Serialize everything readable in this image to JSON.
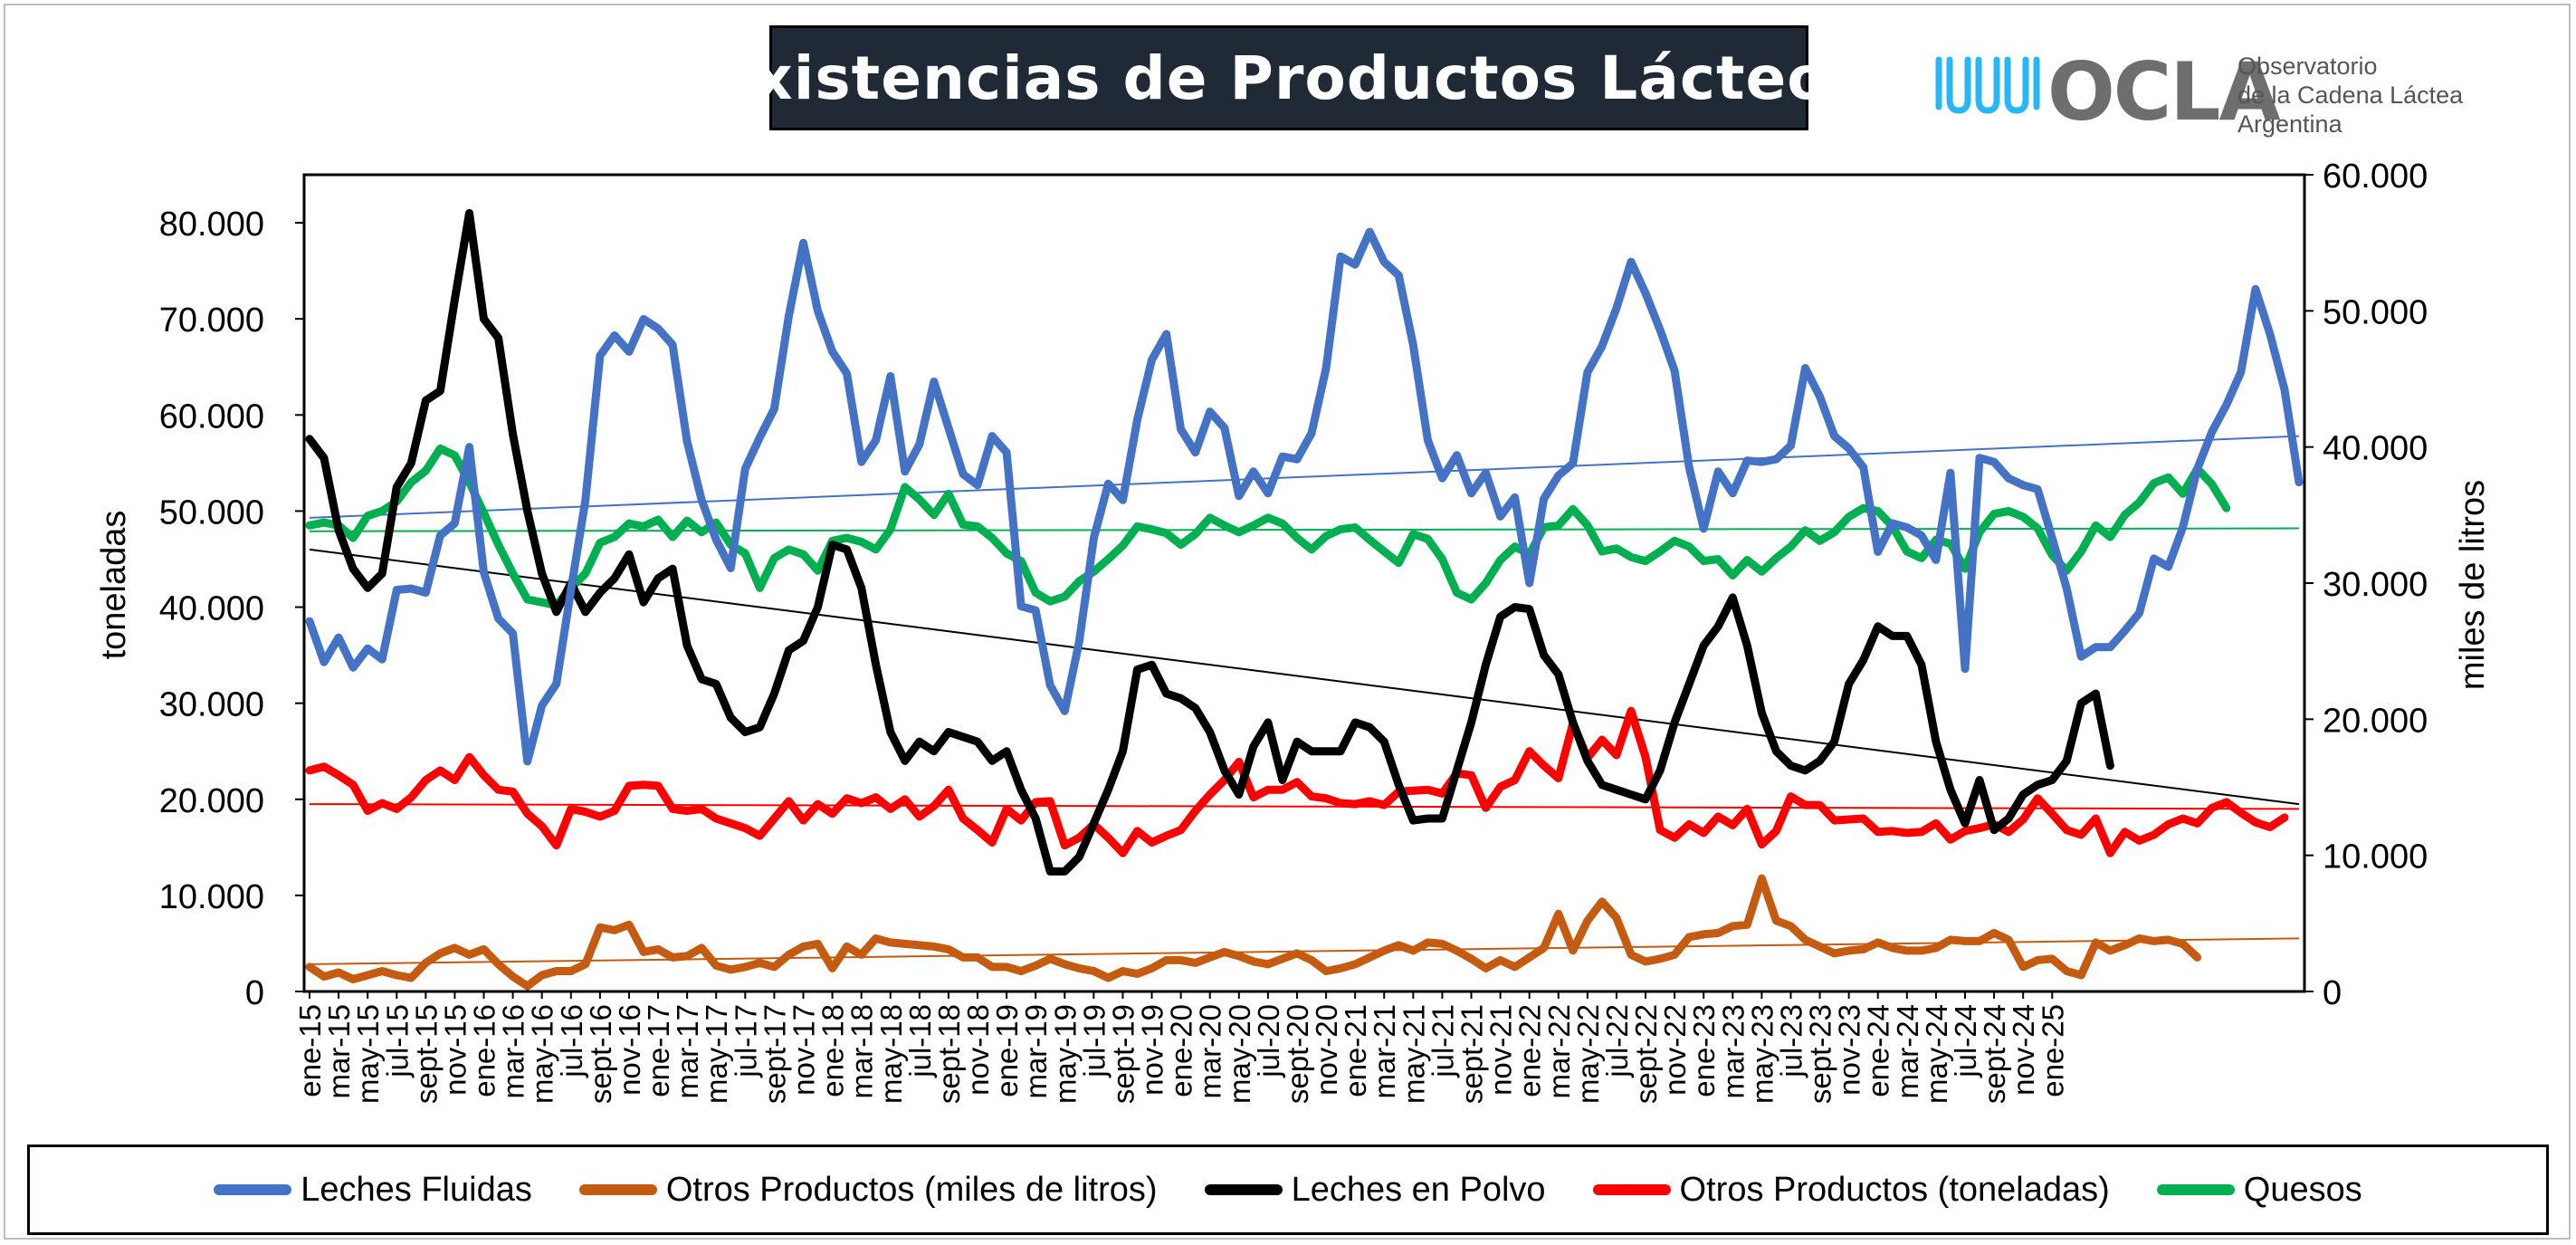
{
  "title": "Existencias de Productos Lácteos",
  "logo": {
    "wordmark": "OCLA",
    "line1": "Observatorio",
    "line2": "de la Cadena Láctea",
    "line3": "Argentina",
    "color": "#29b6f6"
  },
  "chart_data": {
    "type": "line",
    "title": "Existencias de Productos Lácteos",
    "ylabel": "toneladas",
    "y2label": "miles de litros",
    "ylim": [
      0,
      85000
    ],
    "y2lim": [
      0,
      60000
    ],
    "yticks": [
      "0",
      "10.000",
      "20.000",
      "30.000",
      "40.000",
      "50.000",
      "60.000",
      "70.000",
      "80.000"
    ],
    "y2ticks": [
      "0",
      "10.000",
      "20.000",
      "30.000",
      "40.000",
      "50.000",
      "60.000"
    ],
    "grid": false,
    "legend_position": "bottom",
    "x_labels": [
      "ene-15",
      "mar-15",
      "may-15",
      "jul-15",
      "sept-15",
      "nov-15",
      "ene-16",
      "mar-16",
      "may-16",
      "jul-16",
      "sept-16",
      "nov-16",
      "ene-17",
      "mar-17",
      "may-17",
      "jul-17",
      "sept-17",
      "nov-17",
      "ene-18",
      "mar-18",
      "may-18",
      "jul-18",
      "sept-18",
      "nov-18",
      "ene-19",
      "mar-19",
      "may-19",
      "jul-19",
      "sept-19",
      "nov-19",
      "ene-20",
      "mar-20",
      "may-20",
      "jul-20",
      "sept-20",
      "nov-20",
      "ene-21",
      "mar-21",
      "may-21",
      "jul-21",
      "sept-21",
      "nov-21",
      "ene-22",
      "mar-22",
      "may-22",
      "jul-22",
      "sept-22",
      "nov-22",
      "ene-23",
      "mar-23",
      "may-23",
      "jul-23",
      "sept-23",
      "nov-23",
      "ene-24",
      "mar-24",
      "may-24",
      "jul-24",
      "sept-24",
      "nov-24",
      "ene-25"
    ],
    "series": [
      {
        "name": "Leches Fluidas",
        "axis": "right",
        "color": "#4472c4",
        "trend": [
          34800,
          40800
        ],
        "values": [
          27200,
          24200,
          26000,
          23800,
          25200,
          24400,
          29500,
          29600,
          29300,
          33500,
          34400,
          40000,
          30800,
          27400,
          26300,
          16900,
          21000,
          22600,
          29500,
          36100,
          46700,
          48200,
          47000,
          49400,
          48700,
          47500,
          40400,
          36100,
          33200,
          31100,
          38400,
          40700,
          42800,
          49600,
          55000,
          50000,
          47000,
          45400,
          38900,
          40500,
          45200,
          38200,
          40200,
          44800,
          41400,
          38000,
          37200,
          40800,
          39600,
          28300,
          28000,
          22500,
          20600,
          25700,
          33300,
          37300,
          36100,
          42000,
          46400,
          48300,
          41300,
          39600,
          42600,
          41400,
          36400,
          38200,
          36600,
          39300,
          39100,
          41000,
          45800,
          54000,
          53400,
          55800,
          53600,
          52600,
          47500,
          40500,
          37700,
          39400,
          36600,
          38100,
          34900,
          36300,
          30000,
          36200,
          37900,
          38800,
          45500,
          47400,
          50200,
          53600,
          51300,
          48600,
          45600,
          38500,
          34000,
          38200,
          36600,
          39000,
          38900,
          39100,
          40100,
          45800,
          43700,
          40800,
          39900,
          38500,
          32300,
          34400,
          34100,
          33500,
          31700,
          38100,
          23700,
          39200,
          38900,
          37700,
          37200,
          36900,
          33300,
          29600,
          24600,
          25300,
          25300,
          26500,
          27800,
          31800,
          31200,
          34100,
          38400,
          41100,
          43100,
          45500,
          51600,
          48300,
          44200,
          37400
        ]
      },
      {
        "name": "Otros Productos (miles de litros)",
        "axis": "right",
        "color": "#c55a11",
        "trend": [
          2000,
          3900
        ],
        "values": [
          1800,
          1100,
          1400,
          900,
          1200,
          1500,
          1200,
          1000,
          2100,
          2800,
          3200,
          2700,
          3100,
          2000,
          1100,
          400,
          1200,
          1500,
          1500,
          2000,
          4700,
          4500,
          4900,
          2900,
          3100,
          2500,
          2600,
          3200,
          1900,
          1600,
          1800,
          2100,
          1800,
          2700,
          3300,
          3500,
          1700,
          3300,
          2700,
          3900,
          3600,
          3500,
          3400,
          3300,
          3100,
          2500,
          2500,
          1800,
          1800,
          1500,
          1900,
          2400,
          2000,
          1700,
          1500,
          1000,
          1500,
          1300,
          1700,
          2300,
          2300,
          2100,
          2500,
          2900,
          2600,
          2200,
          2000,
          2400,
          2800,
          2300,
          1500,
          1700,
          2000,
          2500,
          3000,
          3400,
          3000,
          3600,
          3500,
          3000,
          2400,
          1700,
          2300,
          1800,
          2500,
          3200,
          5700,
          3000,
          5200,
          6600,
          5400,
          2700,
          2200,
          2400,
          2700,
          4000,
          4200,
          4300,
          4800,
          4900,
          8300,
          5200,
          4800,
          3800,
          3300,
          2800,
          3000,
          3100,
          3600,
          3200,
          3000,
          3000,
          3200,
          3800,
          3700,
          3700,
          4300,
          3800,
          1800,
          2300,
          2400,
          1500,
          1200,
          3600,
          3000,
          3400,
          3900,
          3700,
          3800,
          3500,
          2500
        ]
      },
      {
        "name": "Leches en Polvo",
        "axis": "left",
        "color": "#000000",
        "trend": [
          46000,
          19500
        ],
        "values": [
          57500,
          55500,
          48000,
          44000,
          42000,
          43500,
          52500,
          55000,
          61500,
          62500,
          72000,
          81000,
          70000,
          68000,
          58000,
          50000,
          43500,
          39500,
          42500,
          39500,
          41500,
          43000,
          45500,
          40500,
          43000,
          44000,
          36000,
          32500,
          32000,
          28500,
          27000,
          27500,
          31000,
          35500,
          36500,
          40000,
          46500,
          46000,
          42000,
          34000,
          27000,
          24000,
          26000,
          25000,
          27000,
          26500,
          26000,
          24000,
          25000,
          21000,
          18000,
          12500,
          12500,
          14000,
          17500,
          21000,
          25000,
          33500,
          34000,
          31000,
          30500,
          29500,
          27000,
          23000,
          20500,
          25500,
          28000,
          22000,
          26000,
          25000,
          25000,
          25000,
          28000,
          27500,
          26000,
          21500,
          17800,
          18000,
          18000,
          23000,
          28000,
          34000,
          39000,
          40000,
          39800,
          35000,
          33000,
          28000,
          24000,
          21500,
          21000,
          20500,
          20000,
          23000,
          28000,
          32000,
          36000,
          38000,
          41000,
          36000,
          29000,
          25000,
          23500,
          23000,
          24000,
          26000,
          32000,
          34500,
          38000,
          37000,
          37000,
          34000,
          26000,
          21000,
          17500,
          22000,
          16800,
          18000,
          20500,
          21500,
          22000,
          24000,
          30000,
          31000,
          23500
        ]
      },
      {
        "name": "Otros Productos (toneladas)",
        "axis": "left",
        "color": "#ff0000",
        "trend": [
          19500,
          19000
        ],
        "values": [
          23000,
          23400,
          22500,
          21500,
          18800,
          19600,
          19000,
          20200,
          22000,
          23000,
          22000,
          24400,
          22500,
          21000,
          20800,
          18500,
          17200,
          15200,
          19000,
          18700,
          18200,
          18800,
          21400,
          21500,
          21400,
          19000,
          18800,
          19000,
          18000,
          17500,
          17000,
          16200,
          18000,
          19800,
          17800,
          19500,
          18500,
          20100,
          19600,
          20200,
          19000,
          20000,
          18200,
          19300,
          21000,
          18000,
          16800,
          15500,
          19000,
          17800,
          19700,
          19800,
          15200,
          16000,
          17400,
          16000,
          14400,
          16700,
          15500,
          16200,
          16800,
          18800,
          20500,
          22000,
          23900,
          20200,
          21000,
          21000,
          21800,
          20300,
          20100,
          19600,
          19500,
          19800,
          19400,
          20800,
          20900,
          21000,
          20600,
          22700,
          22500,
          19100,
          21300,
          22000,
          25000,
          23500,
          22200,
          27900,
          24300,
          26200,
          24600,
          29200,
          24400,
          16800,
          16000,
          17400,
          16500,
          18200,
          17300,
          19000,
          15300,
          16700,
          20300,
          19400,
          19400,
          17800,
          17900,
          18000,
          16600,
          16700,
          16500,
          16600,
          17500,
          15800,
          16700,
          17000,
          17400,
          16600,
          17900,
          20100,
          18500,
          16800,
          16300,
          18000,
          14400,
          16600,
          15700,
          16300,
          17400,
          18000,
          17500,
          19100,
          19700,
          18600,
          17600,
          17100,
          18100
        ]
      },
      {
        "name": "Quesos",
        "axis": "left",
        "color": "#00b050",
        "trend": [
          47900,
          48200
        ],
        "values": [
          48500,
          48800,
          48500,
          47200,
          49500,
          50000,
          51000,
          53000,
          54200,
          56500,
          55800,
          53000,
          49800,
          46500,
          43500,
          40800,
          40500,
          40200,
          42000,
          43500,
          46700,
          47300,
          48700,
          48400,
          49100,
          47300,
          49000,
          47800,
          48800,
          46500,
          45600,
          42000,
          45100,
          46000,
          45500,
          43800,
          46900,
          47200,
          46800,
          46000,
          48100,
          52500,
          51200,
          49600,
          51800,
          48600,
          48400,
          47200,
          45600,
          44800,
          41500,
          40600,
          41100,
          42700,
          43700,
          45000,
          46400,
          48400,
          48100,
          47700,
          46500,
          47600,
          49300,
          48500,
          47800,
          48500,
          49300,
          48700,
          47200,
          46000,
          47400,
          48100,
          48300,
          47000,
          45800,
          44600,
          47600,
          47100,
          45000,
          41500,
          40800,
          42500,
          44900,
          46300,
          45500,
          48300,
          48500,
          50200,
          48500,
          45800,
          46100,
          45200,
          44800,
          45800,
          46900,
          46300,
          44800,
          45000,
          43300,
          44900,
          43700,
          45100,
          46300,
          48000,
          46900,
          47800,
          49400,
          50300,
          50000,
          48400,
          45800,
          45100,
          47000,
          46600,
          44000,
          47800,
          49700,
          50000,
          49400,
          48200,
          45400,
          43800,
          45800,
          48500,
          47300,
          49600,
          50900,
          52900,
          53500,
          51800,
          54400,
          52800,
          50300
        ]
      }
    ]
  },
  "legend": [
    {
      "label": "Leches Fluidas",
      "color": "#4472c4"
    },
    {
      "label": "Otros Productos (miles de litros)",
      "color": "#c55a11"
    },
    {
      "label": "Leches en Polvo",
      "color": "#000000"
    },
    {
      "label": "Otros Productos (toneladas)",
      "color": "#ff0000"
    },
    {
      "label": "Quesos",
      "color": "#00b050"
    }
  ]
}
